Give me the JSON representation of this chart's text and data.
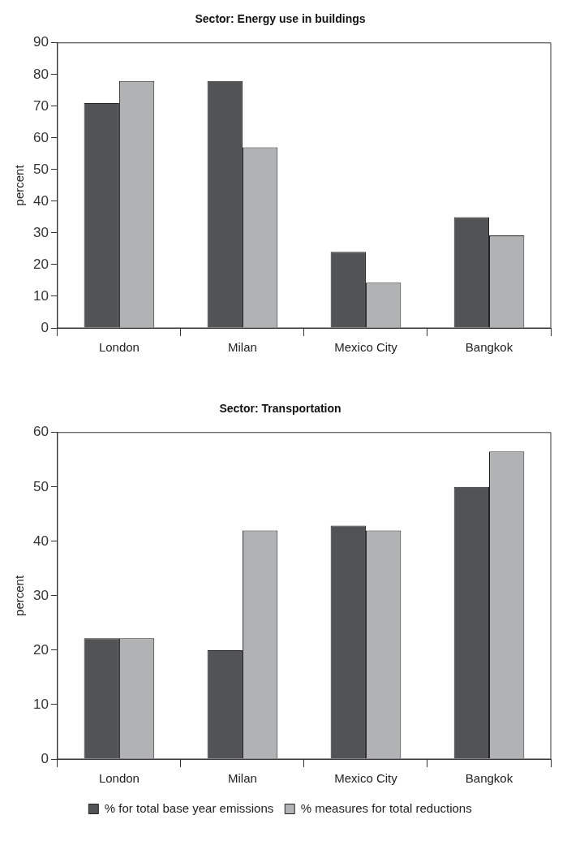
{
  "chart_data": [
    {
      "type": "bar",
      "title": "Sector: Energy use in buildings",
      "ylabel": "percent",
      "categories": [
        "London",
        "Milan",
        "Mexico City",
        "Bangkok"
      ],
      "series": [
        {
          "color": "#525355",
          "values": [
            71,
            78,
            24,
            35
          ]
        },
        {
          "color": "#b1b2b4",
          "values": [
            78,
            57,
            14.3,
            29.2
          ]
        }
      ],
      "ylim": [
        0,
        90
      ],
      "yticks": [
        0,
        10,
        20,
        30,
        40,
        50,
        60,
        70,
        80,
        90
      ],
      "grid": false
    },
    {
      "type": "bar",
      "title": "Sector: Transportation",
      "ylabel": "percent",
      "categories": [
        "London",
        "Milan",
        "Mexico City",
        "Bangkok"
      ],
      "series": [
        {
          "name": "% for total base year emissions",
          "color": "#525355",
          "values": [
            22.2,
            20,
            42.9,
            50
          ]
        },
        {
          "name": "% measures for total reductions",
          "color": "#b1b2b4",
          "values": [
            22.2,
            42,
            42,
            56.5
          ]
        }
      ],
      "ylim": [
        0,
        60
      ],
      "yticks": [
        0,
        10,
        20,
        30,
        40,
        50,
        60
      ],
      "grid": false,
      "legend": "bottom"
    }
  ]
}
